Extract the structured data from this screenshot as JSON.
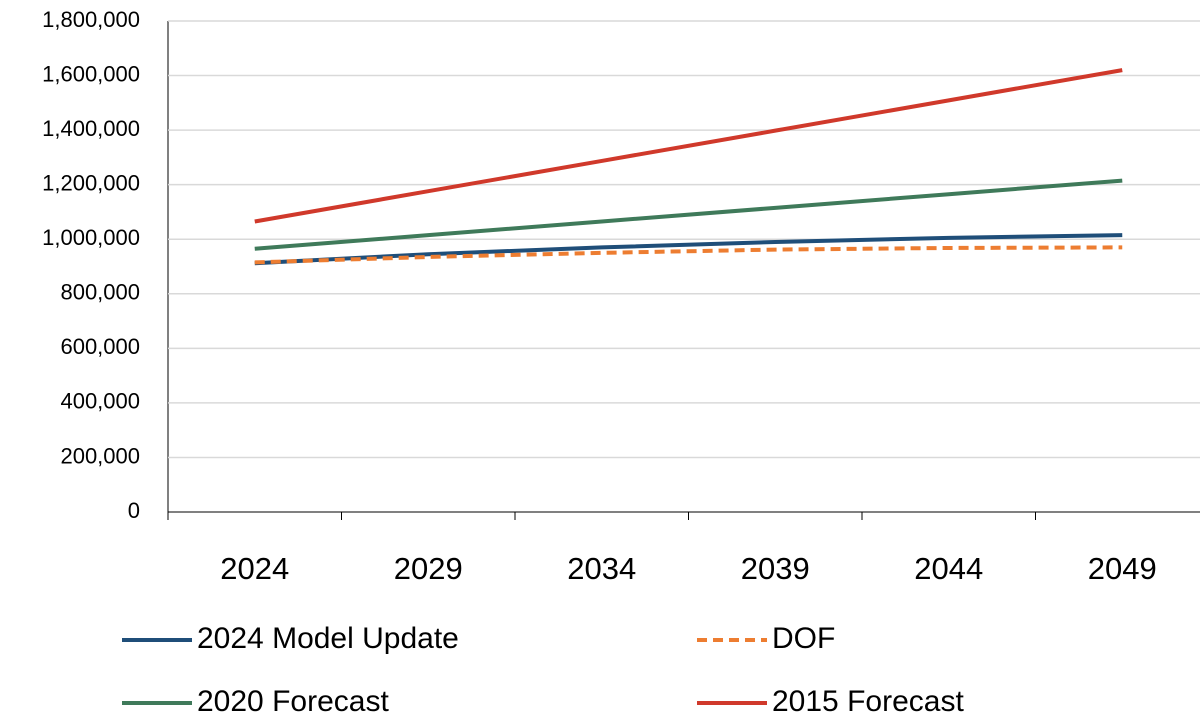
{
  "chart_data": {
    "type": "line",
    "categories": [
      "2024",
      "2029",
      "2034",
      "2039",
      "2044",
      "2049"
    ],
    "series": [
      {
        "name": "2024 Model Update",
        "color": "#1f4e79",
        "dashed": false,
        "values": [
          912000,
          945000,
          970000,
          990000,
          1005000,
          1015000
        ]
      },
      {
        "name": "DOF",
        "color": "#ed7d31",
        "dashed": true,
        "values": [
          915000,
          935000,
          950000,
          962000,
          968000,
          970000
        ]
      },
      {
        "name": "2020 Forecast",
        "color": "#3f7a5a",
        "dashed": false,
        "values": [
          965000,
          1015000,
          1065000,
          1115000,
          1165000,
          1215000
        ]
      },
      {
        "name": "2015 Forecast",
        "color": "#d0392b",
        "dashed": false,
        "values": [
          1065000,
          1176000,
          1287000,
          1398000,
          1509000,
          1620000
        ]
      }
    ],
    "ylim": [
      0,
      1800000
    ],
    "yticks": [
      0,
      {
        "value": 200000,
        "label": "200,000"
      },
      {
        "value": 400000,
        "label": "400,000"
      },
      {
        "value": 600000,
        "label": "600,000"
      },
      {
        "value": 800000,
        "label": "800,000"
      },
      {
        "value": 1000000,
        "label": "1,000,000"
      },
      {
        "value": 1200000,
        "label": "1,200,000"
      },
      {
        "value": 1400000,
        "label": "1,400,000"
      },
      {
        "value": 1600000,
        "label": "1,600,000"
      },
      {
        "value": 1800000,
        "label": "1,800,000"
      }
    ],
    "grid": true
  }
}
